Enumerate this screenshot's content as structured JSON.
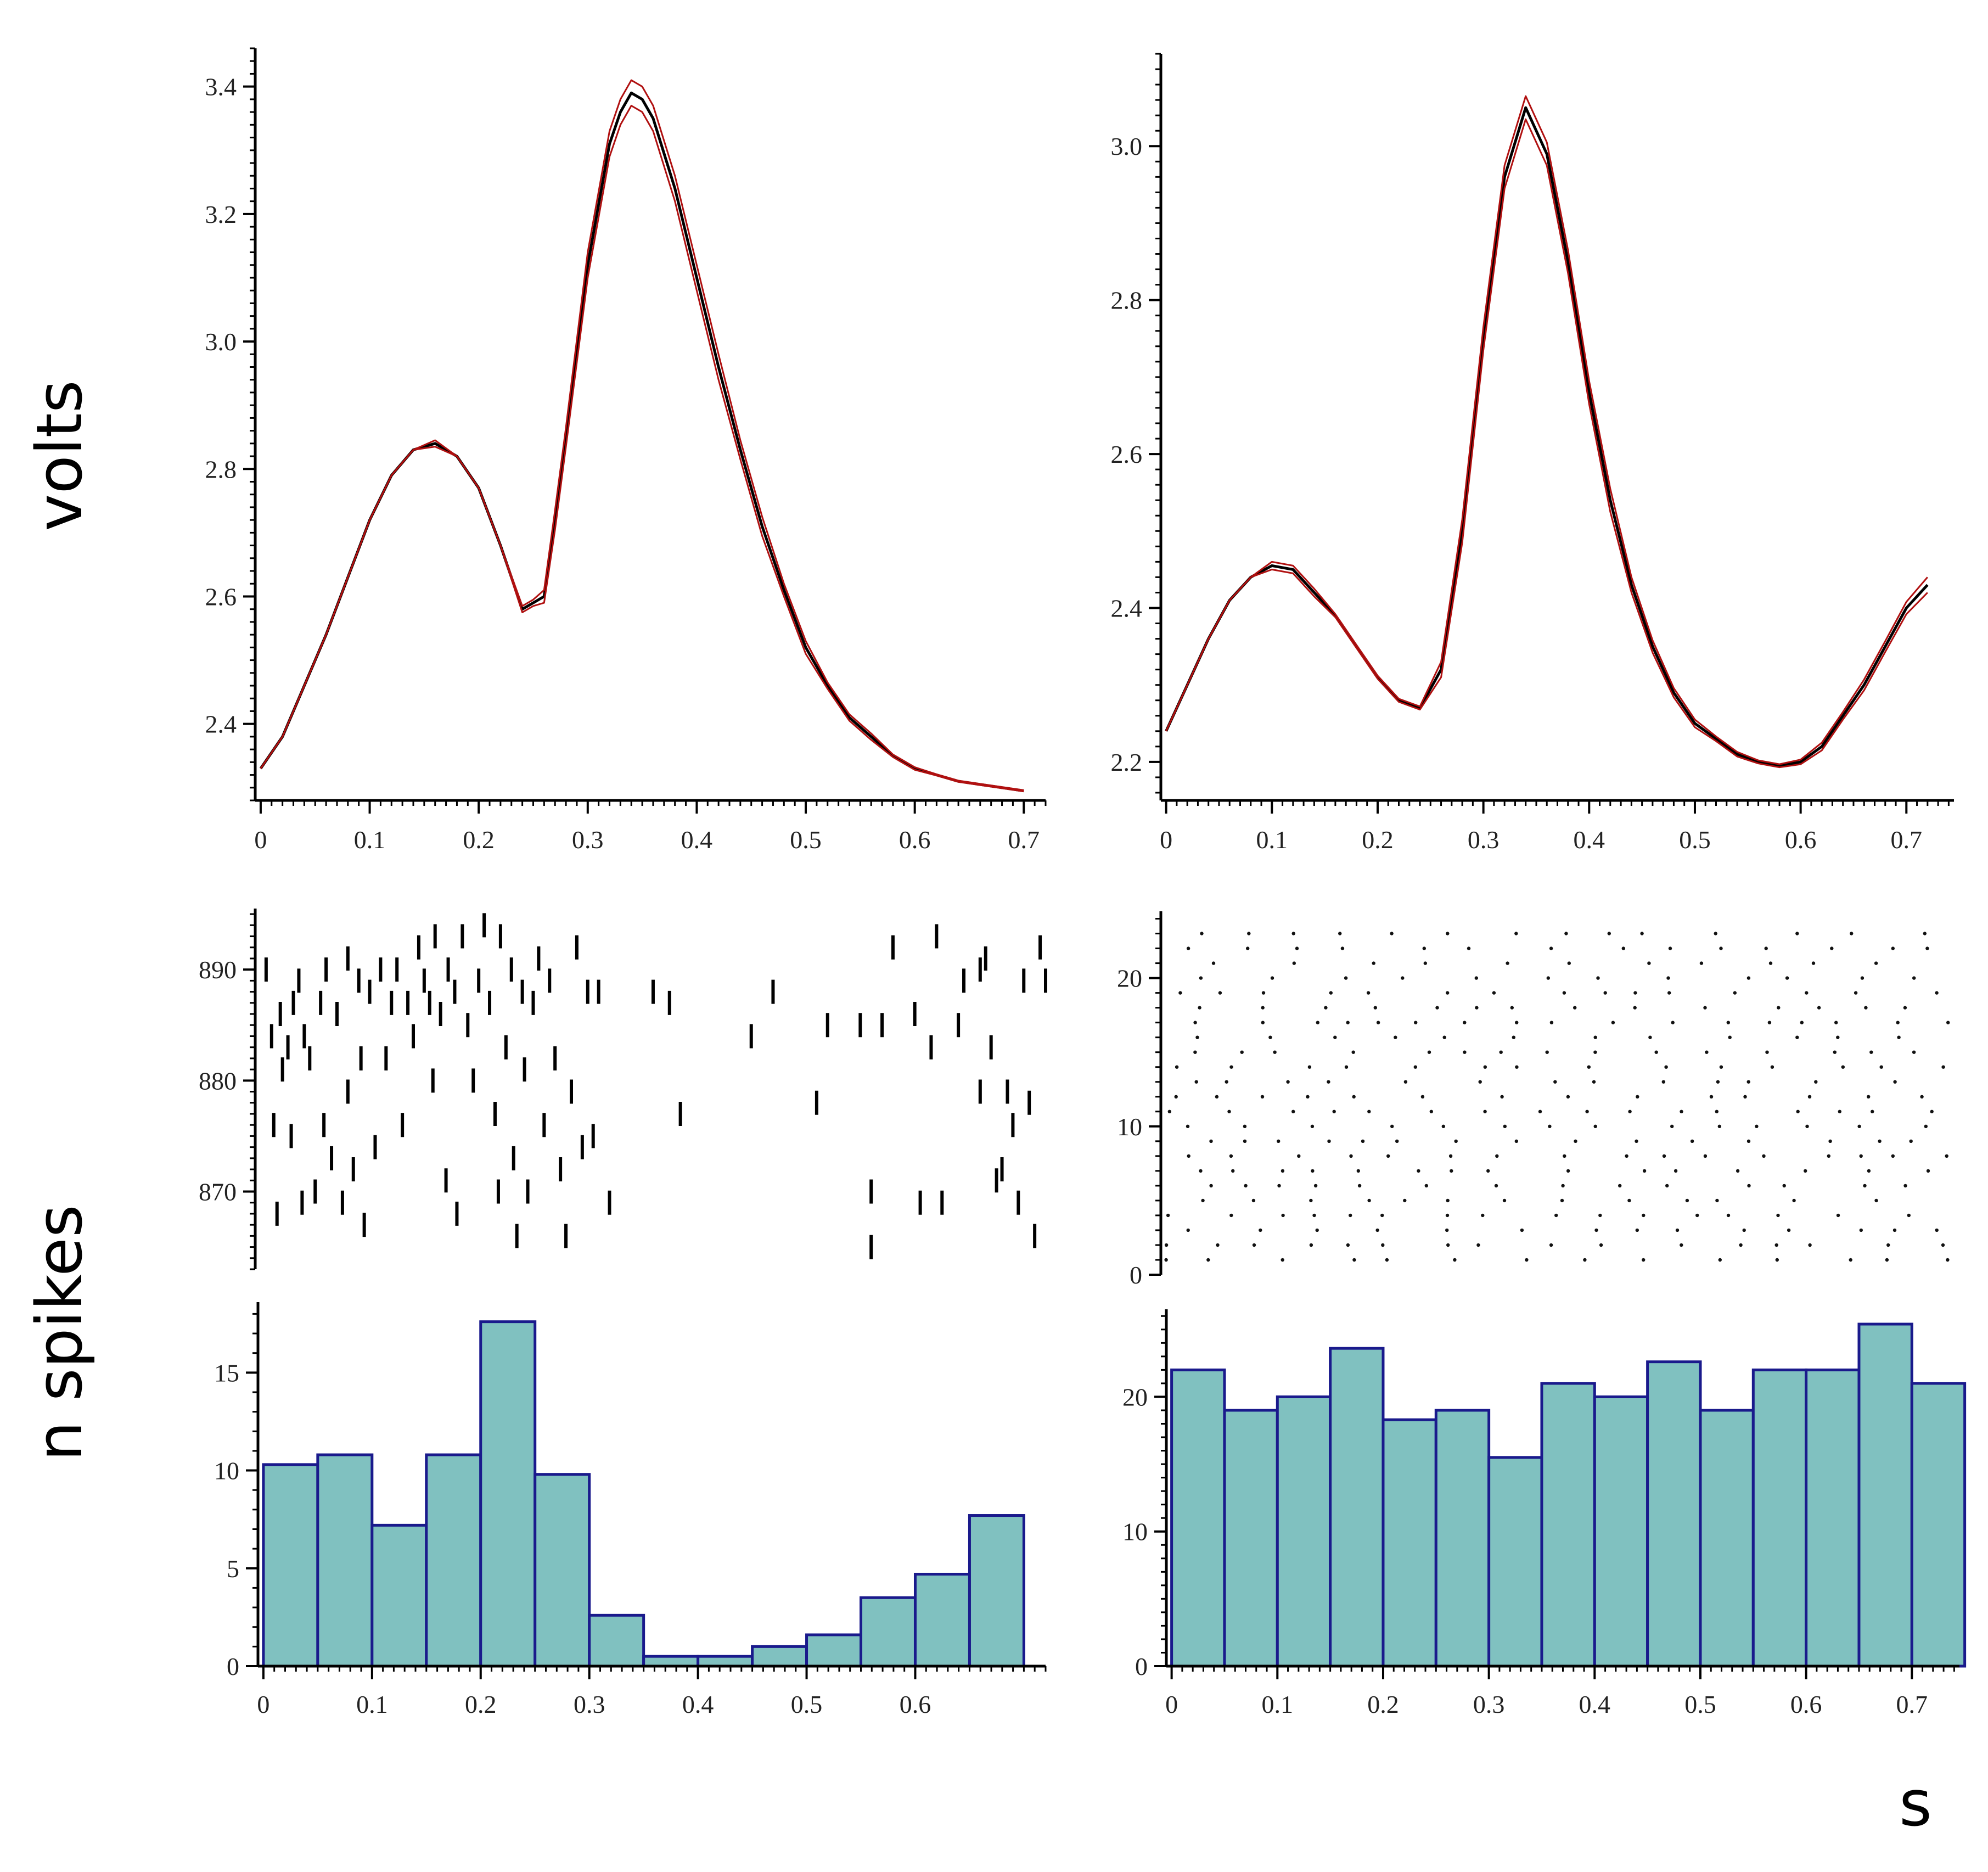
{
  "labels": {
    "volts": "volts",
    "n_spikes": "n spikes",
    "s": "s"
  },
  "colors": {
    "line_black": "#000000",
    "line_red": "#b01010",
    "bar_fill": "#80c1c0",
    "bar_edge": "#1a1a8c",
    "axis": "#000000"
  },
  "chart_data": [
    {
      "id": "volts-left",
      "type": "line",
      "xlim": [
        -0.005,
        0.72
      ],
      "ylim": [
        2.28,
        3.46
      ],
      "xticks": [
        0,
        0.1,
        0.2,
        0.3,
        0.4,
        0.5,
        0.6,
        0.7
      ],
      "xtick_labels": [
        "0",
        "0.1",
        "0.2",
        "0.3",
        "0.4",
        "0.5",
        "0.6",
        "0.7"
      ],
      "yticks": [
        2.4,
        2.6,
        2.8,
        3.0,
        3.2,
        3.4
      ],
      "ytick_labels": [
        "2.4",
        "2.6",
        "2.8",
        "3.0",
        "3.2",
        "3.4"
      ],
      "x": [
        0,
        0.02,
        0.04,
        0.06,
        0.08,
        0.1,
        0.12,
        0.14,
        0.16,
        0.18,
        0.2,
        0.22,
        0.24,
        0.25,
        0.26,
        0.27,
        0.28,
        0.3,
        0.32,
        0.33,
        0.34,
        0.35,
        0.36,
        0.38,
        0.4,
        0.42,
        0.44,
        0.46,
        0.48,
        0.5,
        0.52,
        0.54,
        0.56,
        0.58,
        0.6,
        0.62,
        0.64,
        0.66,
        0.68,
        0.7
      ],
      "series": [
        {
          "name": "mean",
          "values": [
            2.33,
            2.38,
            2.46,
            2.54,
            2.63,
            2.72,
            2.79,
            2.83,
            2.84,
            2.82,
            2.77,
            2.68,
            2.58,
            2.59,
            2.6,
            2.72,
            2.85,
            3.12,
            3.31,
            3.36,
            3.39,
            3.38,
            3.35,
            3.24,
            3.1,
            2.96,
            2.83,
            2.71,
            2.61,
            2.52,
            2.46,
            2.41,
            2.38,
            2.35,
            2.33,
            2.32,
            2.31,
            2.305,
            2.3,
            2.295
          ]
        },
        {
          "name": "upper",
          "values": [
            2.33,
            2.38,
            2.46,
            2.54,
            2.63,
            2.72,
            2.79,
            2.83,
            2.845,
            2.82,
            2.77,
            2.68,
            2.585,
            2.595,
            2.61,
            2.735,
            2.865,
            3.14,
            3.33,
            3.38,
            3.41,
            3.4,
            3.37,
            3.26,
            3.12,
            2.98,
            2.845,
            2.725,
            2.62,
            2.53,
            2.465,
            2.415,
            2.385,
            2.352,
            2.332,
            2.321,
            2.311,
            2.306,
            2.301,
            2.296
          ]
        },
        {
          "name": "lower",
          "values": [
            2.33,
            2.38,
            2.46,
            2.54,
            2.63,
            2.72,
            2.79,
            2.83,
            2.835,
            2.82,
            2.77,
            2.68,
            2.575,
            2.585,
            2.59,
            2.705,
            2.835,
            3.1,
            3.29,
            3.34,
            3.37,
            3.36,
            3.33,
            3.22,
            3.08,
            2.94,
            2.815,
            2.695,
            2.6,
            2.51,
            2.455,
            2.405,
            2.375,
            2.348,
            2.328,
            2.319,
            2.309,
            2.304,
            2.299,
            2.294
          ]
        }
      ]
    },
    {
      "id": "volts-right",
      "type": "line",
      "xlim": [
        -0.005,
        0.745
      ],
      "ylim": [
        2.15,
        3.12
      ],
      "xticks": [
        0,
        0.1,
        0.2,
        0.3,
        0.4,
        0.5,
        0.6,
        0.7
      ],
      "xtick_labels": [
        "0",
        "0.1",
        "0.2",
        "0.3",
        "0.4",
        "0.5",
        "0.6",
        "0.7"
      ],
      "yticks": [
        2.2,
        2.4,
        2.6,
        2.8,
        3.0
      ],
      "ytick_labels": [
        "2.2",
        "2.4",
        "2.6",
        "2.8",
        "3.0"
      ],
      "x": [
        0,
        0.02,
        0.04,
        0.06,
        0.08,
        0.1,
        0.12,
        0.14,
        0.16,
        0.18,
        0.2,
        0.22,
        0.24,
        0.26,
        0.28,
        0.3,
        0.32,
        0.34,
        0.36,
        0.38,
        0.4,
        0.42,
        0.44,
        0.46,
        0.48,
        0.5,
        0.52,
        0.54,
        0.56,
        0.58,
        0.6,
        0.62,
        0.64,
        0.66,
        0.68,
        0.7,
        0.72
      ],
      "series": [
        {
          "name": "mean",
          "values": [
            2.24,
            2.3,
            2.36,
            2.41,
            2.44,
            2.455,
            2.45,
            2.42,
            2.39,
            2.35,
            2.31,
            2.28,
            2.27,
            2.32,
            2.5,
            2.75,
            2.96,
            3.05,
            2.99,
            2.85,
            2.68,
            2.54,
            2.43,
            2.35,
            2.29,
            2.25,
            2.23,
            2.21,
            2.2,
            2.195,
            2.2,
            2.22,
            2.26,
            2.3,
            2.35,
            2.4,
            2.43
          ]
        },
        {
          "name": "upper",
          "values": [
            2.24,
            2.3,
            2.36,
            2.41,
            2.44,
            2.46,
            2.455,
            2.425,
            2.392,
            2.352,
            2.312,
            2.282,
            2.272,
            2.33,
            2.515,
            2.765,
            2.975,
            3.065,
            3.005,
            2.865,
            2.695,
            2.555,
            2.44,
            2.358,
            2.296,
            2.255,
            2.233,
            2.213,
            2.202,
            2.197,
            2.203,
            2.225,
            2.265,
            2.307,
            2.357,
            2.408,
            2.44
          ]
        },
        {
          "name": "lower",
          "values": [
            2.24,
            2.3,
            2.36,
            2.41,
            2.44,
            2.45,
            2.445,
            2.415,
            2.388,
            2.348,
            2.308,
            2.278,
            2.268,
            2.31,
            2.485,
            2.735,
            2.945,
            3.035,
            2.975,
            2.835,
            2.665,
            2.525,
            2.42,
            2.342,
            2.284,
            2.245,
            2.227,
            2.207,
            2.198,
            2.193,
            2.197,
            2.215,
            2.255,
            2.293,
            2.343,
            2.392,
            2.42
          ]
        }
      ]
    },
    {
      "id": "raster-left",
      "type": "scatter",
      "marker": "vertical-tick",
      "xlim": [
        -0.005,
        0.72
      ],
      "ylim": [
        863,
        895.5
      ],
      "yticks": [
        870,
        880,
        890
      ],
      "ytick_labels": [
        "870",
        "880",
        "890"
      ],
      "points": [
        [
          0.005,
          890
        ],
        [
          0.01,
          884
        ],
        [
          0.012,
          876
        ],
        [
          0.018,
          886
        ],
        [
          0.015,
          868
        ],
        [
          0.02,
          881
        ],
        [
          0.025,
          883
        ],
        [
          0.03,
          887
        ],
        [
          0.028,
          875
        ],
        [
          0.035,
          889
        ],
        [
          0.04,
          884
        ],
        [
          0.045,
          882
        ],
        [
          0.038,
          869
        ],
        [
          0.05,
          870
        ],
        [
          0.055,
          887
        ],
        [
          0.06,
          890
        ],
        [
          0.058,
          876
        ],
        [
          0.065,
          873
        ],
        [
          0.07,
          886
        ],
        [
          0.075,
          869
        ],
        [
          0.08,
          891
        ],
        [
          0.08,
          879
        ],
        [
          0.085,
          872
        ],
        [
          0.09,
          889
        ],
        [
          0.092,
          882
        ],
        [
          0.095,
          867
        ],
        [
          0.1,
          888
        ],
        [
          0.105,
          874
        ],
        [
          0.11,
          890
        ],
        [
          0.115,
          882
        ],
        [
          0.12,
          887
        ],
        [
          0.125,
          890
        ],
        [
          0.13,
          876
        ],
        [
          0.135,
          887
        ],
        [
          0.14,
          884
        ],
        [
          0.145,
          892
        ],
        [
          0.15,
          889
        ],
        [
          0.155,
          887
        ],
        [
          0.158,
          880
        ],
        [
          0.16,
          893
        ],
        [
          0.165,
          886
        ],
        [
          0.17,
          871
        ],
        [
          0.172,
          890
        ],
        [
          0.178,
          888
        ],
        [
          0.18,
          868
        ],
        [
          0.185,
          893
        ],
        [
          0.19,
          885
        ],
        [
          0.195,
          880
        ],
        [
          0.2,
          889
        ],
        [
          0.205,
          894
        ],
        [
          0.21,
          887
        ],
        [
          0.215,
          877
        ],
        [
          0.218,
          870
        ],
        [
          0.22,
          893
        ],
        [
          0.225,
          883
        ],
        [
          0.23,
          890
        ],
        [
          0.232,
          873
        ],
        [
          0.235,
          866
        ],
        [
          0.24,
          888
        ],
        [
          0.242,
          881
        ],
        [
          0.245,
          870
        ],
        [
          0.25,
          887
        ],
        [
          0.255,
          891
        ],
        [
          0.26,
          876
        ],
        [
          0.265,
          889
        ],
        [
          0.27,
          882
        ],
        [
          0.275,
          872
        ],
        [
          0.28,
          866
        ],
        [
          0.285,
          879
        ],
        [
          0.29,
          892
        ],
        [
          0.295,
          874
        ],
        [
          0.3,
          888
        ],
        [
          0.305,
          875
        ],
        [
          0.31,
          888
        ],
        [
          0.32,
          869
        ],
        [
          0.36,
          888
        ],
        [
          0.375,
          887
        ],
        [
          0.385,
          877
        ],
        [
          0.45,
          884
        ],
        [
          0.47,
          888
        ],
        [
          0.52,
          885
        ],
        [
          0.51,
          878
        ],
        [
          0.55,
          885
        ],
        [
          0.57,
          885
        ],
        [
          0.56,
          870
        ],
        [
          0.56,
          865
        ],
        [
          0.58,
          892
        ],
        [
          0.6,
          886
        ],
        [
          0.605,
          869
        ],
        [
          0.62,
          893
        ],
        [
          0.615,
          883
        ],
        [
          0.625,
          869
        ],
        [
          0.64,
          885
        ],
        [
          0.645,
          889
        ],
        [
          0.66,
          890
        ],
        [
          0.66,
          879
        ],
        [
          0.665,
          891
        ],
        [
          0.67,
          883
        ],
        [
          0.675,
          871
        ],
        [
          0.68,
          872
        ],
        [
          0.685,
          879
        ],
        [
          0.69,
          876
        ],
        [
          0.695,
          869
        ],
        [
          0.7,
          889
        ],
        [
          0.705,
          878
        ],
        [
          0.71,
          866
        ],
        [
          0.715,
          892
        ],
        [
          0.72,
          889
        ]
      ]
    },
    {
      "id": "raster-right",
      "type": "scatter",
      "marker": "dot",
      "xlim": [
        -0.005,
        0.745
      ],
      "ylim": [
        0,
        24.5
      ],
      "yticks": [
        0,
        10,
        20
      ],
      "ytick_labels": [
        "0",
        "10",
        "20"
      ],
      "generator": "quasi-random dot raster, trials 1–23"
    },
    {
      "id": "hist-left",
      "type": "bar",
      "xlim": [
        -0.005,
        0.72
      ],
      "ylim": [
        0,
        18.6
      ],
      "xticks": [
        0,
        0.1,
        0.2,
        0.3,
        0.4,
        0.5,
        0.6
      ],
      "xtick_labels": [
        "0",
        "0.1",
        "0.2",
        "0.3",
        "0.4",
        "0.5",
        "0.6"
      ],
      "yticks": [
        0,
        5,
        10,
        15
      ],
      "ytick_labels": [
        "0",
        "5",
        "10",
        "15"
      ],
      "bin_width": 0.05,
      "bin_starts": [
        0,
        0.05,
        0.1,
        0.15,
        0.2,
        0.25,
        0.3,
        0.35,
        0.4,
        0.45,
        0.5,
        0.55,
        0.6,
        0.65
      ],
      "values": [
        10.3,
        10.8,
        7.2,
        10.8,
        17.6,
        9.8,
        2.6,
        0.5,
        0.5,
        1.0,
        1.6,
        3.5,
        4.7,
        7.7
      ]
    },
    {
      "id": "hist-right",
      "type": "bar",
      "xlim": [
        -0.005,
        0.745
      ],
      "ylim": [
        0,
        26.5
      ],
      "xticks": [
        0,
        0.1,
        0.2,
        0.3,
        0.4,
        0.5,
        0.6,
        0.7
      ],
      "xtick_labels": [
        "0",
        "0.1",
        "0.2",
        "0.3",
        "0.4",
        "0.5",
        "0.6",
        "0.7"
      ],
      "yticks": [
        0,
        10,
        20
      ],
      "ytick_labels": [
        "0",
        "10",
        "20"
      ],
      "bin_width": 0.05,
      "bin_starts": [
        0,
        0.05,
        0.1,
        0.15,
        0.2,
        0.25,
        0.3,
        0.35,
        0.4,
        0.45,
        0.5,
        0.55,
        0.6,
        0.65,
        0.7
      ],
      "values": [
        22,
        19,
        20,
        23.6,
        18.3,
        19,
        15.5,
        21,
        20,
        22.6,
        19,
        22,
        22,
        25.4,
        21
      ]
    }
  ]
}
